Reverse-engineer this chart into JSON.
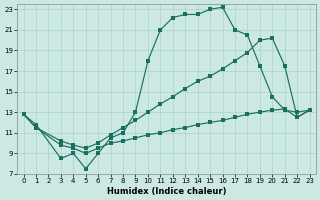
{
  "xlabel": "Humidex (Indice chaleur)",
  "bg_color": "#cce8e2",
  "grid_color": "#aad0c8",
  "line_color": "#1a7060",
  "xlim_min": -0.5,
  "xlim_max": 23.5,
  "ylim_min": 7,
  "ylim_max": 23.5,
  "xticks": [
    0,
    1,
    2,
    3,
    4,
    5,
    6,
    7,
    8,
    9,
    10,
    11,
    12,
    13,
    14,
    15,
    16,
    17,
    18,
    19,
    20,
    21,
    22,
    23
  ],
  "yticks": [
    7,
    9,
    11,
    13,
    15,
    17,
    19,
    21,
    23
  ],
  "curve1_x": [
    0,
    1,
    3,
    4,
    5,
    6,
    7,
    8,
    9,
    10,
    11,
    12,
    13,
    14,
    15,
    16,
    17,
    18,
    19,
    20,
    21,
    22,
    23
  ],
  "curve1_y": [
    12.8,
    11.8,
    8.5,
    9.0,
    7.5,
    9.0,
    10.5,
    11.0,
    13.0,
    18.0,
    21.0,
    22.2,
    22.5,
    22.5,
    23.0,
    23.2,
    21.0,
    20.5,
    17.5,
    14.5,
    13.2,
    13.0,
    13.2
  ],
  "curve2_x": [
    0,
    1,
    3,
    4,
    5,
    6,
    7,
    8,
    9,
    10,
    11,
    12,
    13,
    14,
    15,
    16,
    17,
    18,
    19,
    20,
    21,
    22,
    23
  ],
  "curve2_y": [
    12.8,
    11.5,
    10.2,
    9.8,
    9.5,
    10.0,
    10.8,
    11.5,
    12.2,
    13.0,
    13.8,
    14.5,
    15.3,
    16.0,
    16.5,
    17.2,
    18.0,
    18.8,
    20.0,
    20.2,
    17.5,
    12.5,
    13.2
  ],
  "curve3_x": [
    0,
    1,
    3,
    4,
    5,
    6,
    7,
    8,
    9,
    10,
    11,
    12,
    13,
    14,
    15,
    16,
    17,
    18,
    19,
    20,
    21,
    22,
    23
  ],
  "curve3_y": [
    12.8,
    11.5,
    9.8,
    9.5,
    9.0,
    9.5,
    10.0,
    10.2,
    10.5,
    10.8,
    11.0,
    11.3,
    11.5,
    11.8,
    12.0,
    12.2,
    12.5,
    12.8,
    13.0,
    13.2,
    13.3,
    12.5,
    13.2
  ]
}
